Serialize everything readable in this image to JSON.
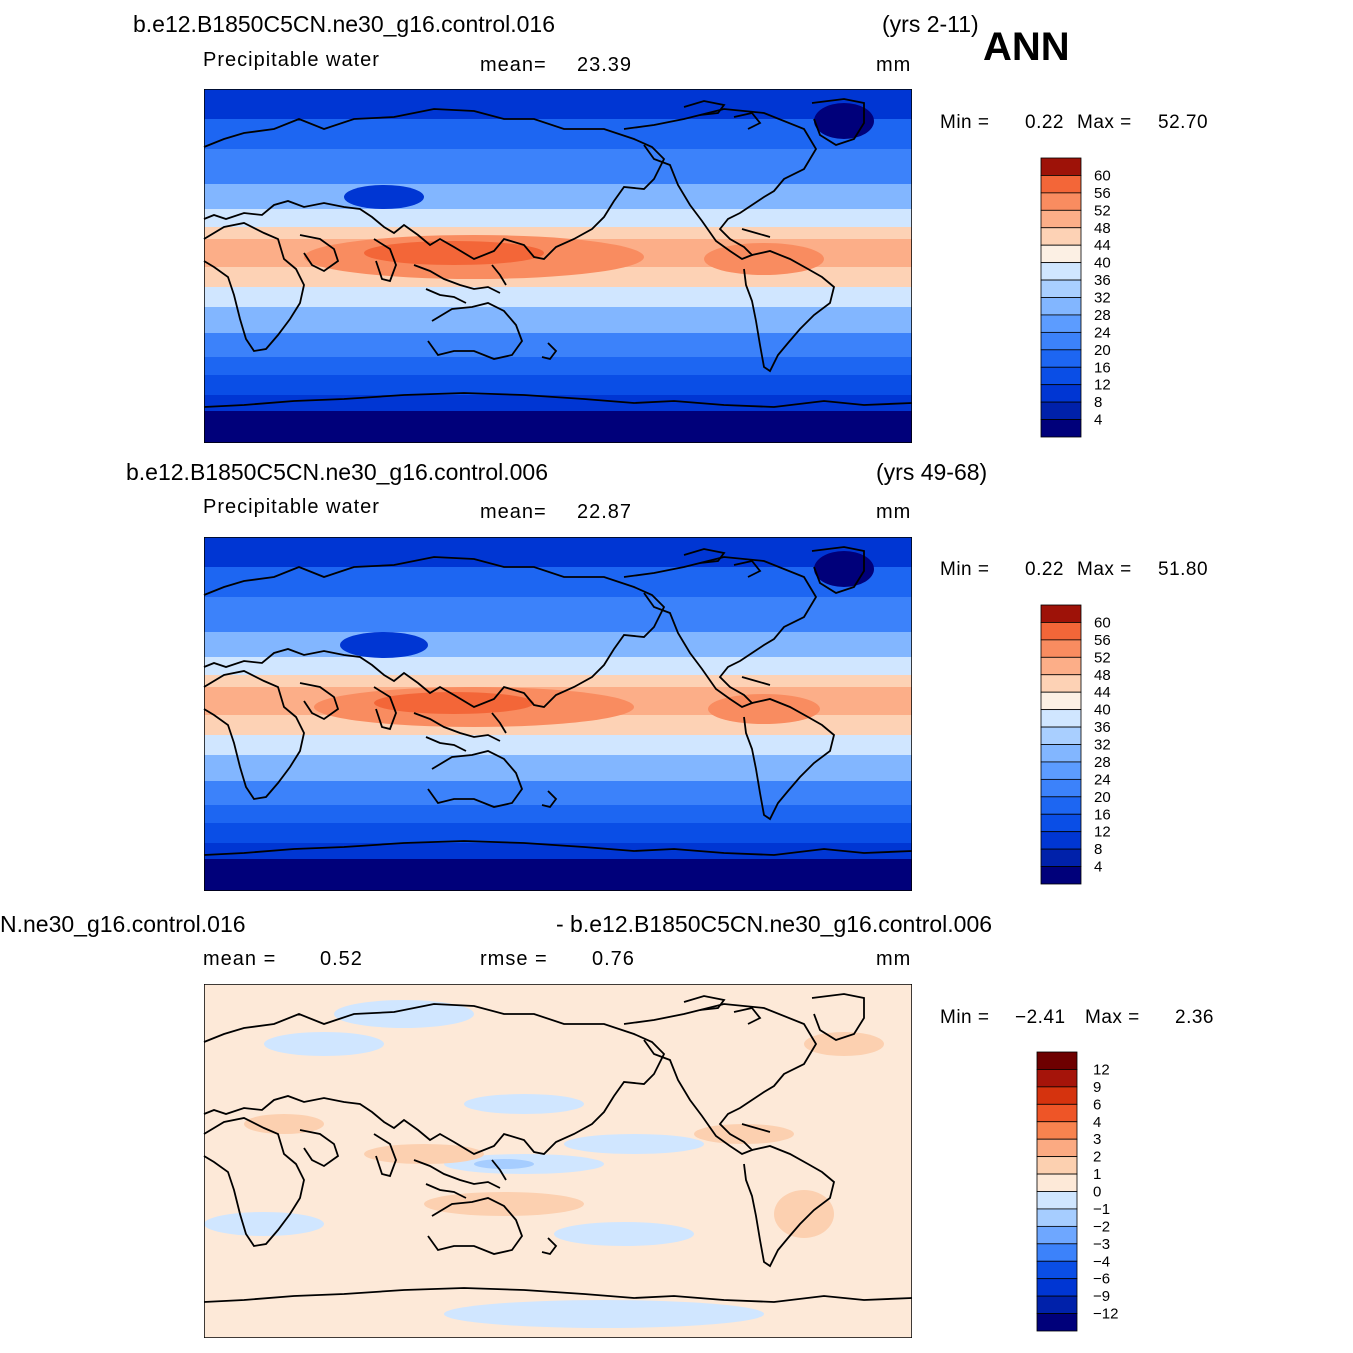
{
  "season": "ANN",
  "palettes": {
    "abs": [
      "#00007a",
      "#0021aa",
      "#0036d3",
      "#0a4ee6",
      "#1d66f2",
      "#3c82fa",
      "#5c9cff",
      "#82b6ff",
      "#a9cfff",
      "#d0e6ff",
      "#fcf0e4",
      "#fdd2b5",
      "#fcae88",
      "#f98c60",
      "#f36638",
      "#e34318",
      "#c62b0d",
      "#9e1208",
      "#6e0000"
    ],
    "diff": [
      "#00007a",
      "#0021aa",
      "#0036d3",
      "#0a4ee6",
      "#3c82fa",
      "#6ea7ff",
      "#a6cdff",
      "#d0e6ff",
      "#fde9d8",
      "#fcd0b0",
      "#fbaa82",
      "#f8834f",
      "#ee5527",
      "#d5330e",
      "#a5140a",
      "#6e0000"
    ]
  },
  "panels": [
    {
      "case": "b.e12.B1850C5CN.ne30_g16.control.016",
      "years": "(yrs 2-11)",
      "variable": "Precipitable water",
      "stat_label": "mean=",
      "stat_value": "23.39",
      "units": "mm",
      "min_label": "Min =",
      "min_value": "0.22",
      "max_label": "Max =",
      "max_value": "52.70",
      "colorbar_levels": [
        "60",
        "56",
        "52",
        "48",
        "44",
        "40",
        "36",
        "32",
        "28",
        "24",
        "20",
        "16",
        "12",
        "8",
        "4"
      ]
    },
    {
      "case": "b.e12.B1850C5CN.ne30_g16.control.006",
      "years": "(yrs 49-68)",
      "variable": "Precipitable water",
      "stat_label": "mean=",
      "stat_value": "22.87",
      "units": "mm",
      "min_label": "Min =",
      "min_value": "0.22",
      "max_label": "Max =",
      "max_value": "51.80",
      "colorbar_levels": [
        "60",
        "56",
        "52",
        "48",
        "44",
        "40",
        "36",
        "32",
        "28",
        "24",
        "20",
        "16",
        "12",
        "8",
        "4"
      ]
    },
    {
      "case_left": "N.ne30_g16.control.016",
      "case_right": "- b.e12.B1850C5CN.ne30_g16.control.006",
      "stat_label": "mean =",
      "stat_value": "0.52",
      "rmse_label": "rmse =",
      "rmse_value": "0.76",
      "units": "mm",
      "min_label": "Min =",
      "min_value": "−2.41",
      "max_label": "Max =",
      "max_value": "2.36",
      "colorbar_levels": [
        "12",
        "9",
        "6",
        "4",
        "3",
        "2",
        "1",
        "0",
        "−1",
        "−2",
        "−3",
        "−4",
        "−6",
        "−9",
        "−12"
      ]
    }
  ]
}
